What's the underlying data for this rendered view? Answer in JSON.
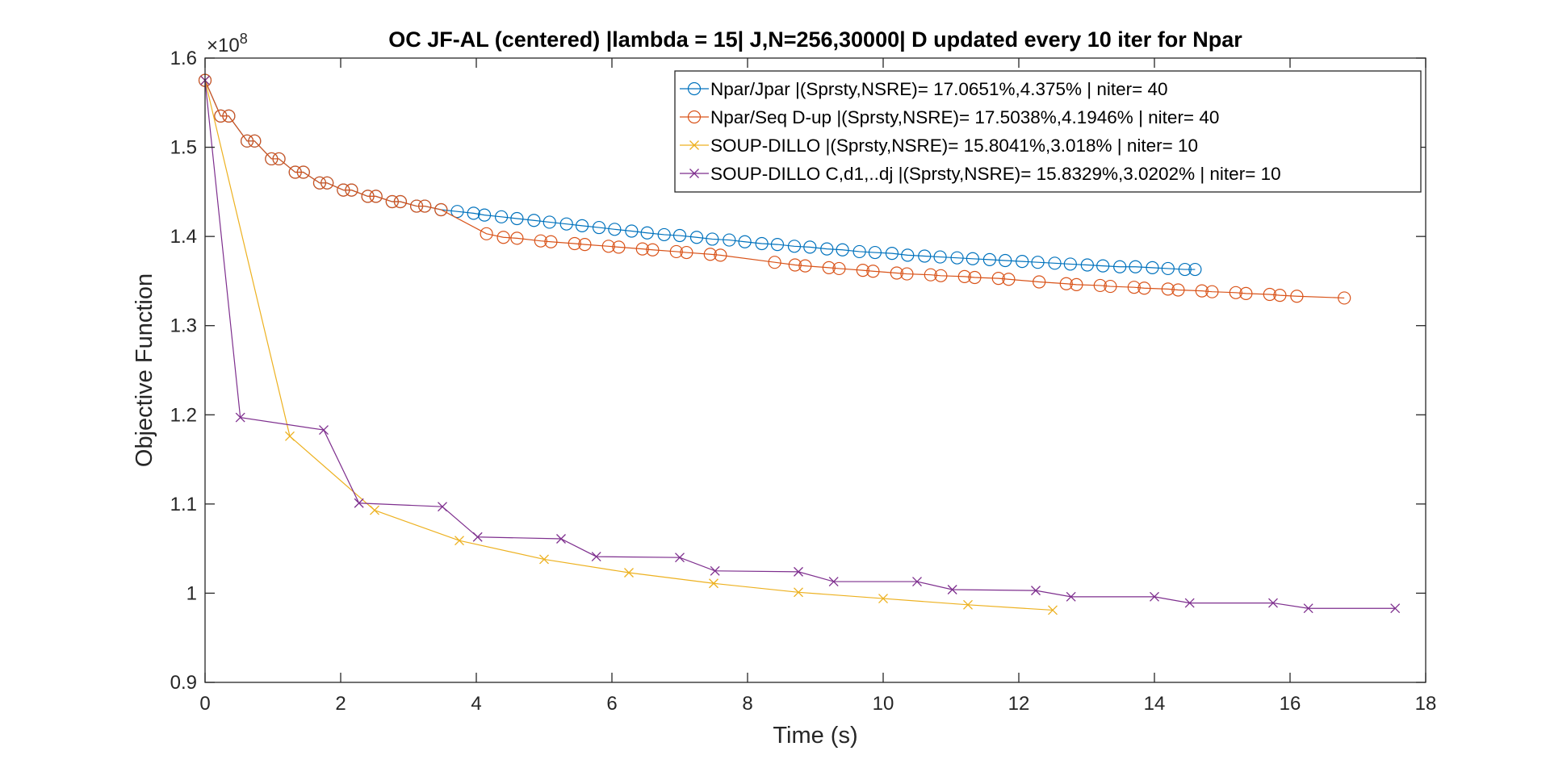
{
  "chart_data": {
    "type": "line",
    "title": "OC JF-AL (centered) |lambda = 15| J,N=256,30000| D updated every 10 iter for Npar",
    "xlabel": "Time (s)",
    "ylabel": "Objective Function",
    "y_exponent_label": "×10",
    "y_exponent_power": "8",
    "y_scale": 100000000,
    "xlim": [
      0,
      18
    ],
    "ylim": [
      0.9,
      1.6
    ],
    "x_ticks": [
      0,
      2,
      4,
      6,
      8,
      10,
      12,
      14,
      16,
      18
    ],
    "y_ticks": [
      0.9,
      1,
      1.1,
      1.2,
      1.3,
      1.4,
      1.5,
      1.6
    ],
    "x_tick_labels": [
      "0",
      "2",
      "4",
      "6",
      "8",
      "10",
      "12",
      "14",
      "16",
      "18"
    ],
    "y_tick_labels": [
      "0.9",
      "1",
      "1.1",
      "1.2",
      "1.3",
      "1.4",
      "1.5",
      "1.6"
    ],
    "grid": false,
    "legend_position": "top-right",
    "series": [
      {
        "name": "Npar/Jpar |(Sprsty,NSRE)= 17.0651%,4.375% | niter= 40",
        "color": "#0072BD",
        "marker": "circle",
        "x": [
          0,
          0.23,
          0.35,
          0.62,
          0.73,
          0.98,
          1.09,
          1.33,
          1.45,
          1.69,
          1.8,
          2.04,
          2.16,
          2.4,
          2.52,
          2.76,
          2.88,
          3.12,
          3.24,
          3.48,
          3.72,
          3.96,
          4.12,
          4.37,
          4.6,
          4.85,
          5.08,
          5.33,
          5.56,
          5.81,
          6.04,
          6.29,
          6.52,
          6.77,
          7.0,
          7.25,
          7.48,
          7.73,
          7.96,
          8.21,
          8.44,
          8.69,
          8.92,
          9.17,
          9.4,
          9.65,
          9.88,
          10.13,
          10.36,
          10.61,
          10.84,
          11.09,
          11.32,
          11.57,
          11.8,
          12.05,
          12.28,
          12.53,
          12.76,
          13.01,
          13.24,
          13.49,
          13.72,
          13.97,
          14.2,
          14.45,
          14.6
        ],
        "y": [
          1.575,
          1.535,
          1.535,
          1.507,
          1.507,
          1.487,
          1.487,
          1.472,
          1.472,
          1.46,
          1.46,
          1.452,
          1.452,
          1.445,
          1.445,
          1.439,
          1.439,
          1.434,
          1.434,
          1.43,
          1.428,
          1.426,
          1.424,
          1.422,
          1.42,
          1.418,
          1.416,
          1.414,
          1.412,
          1.41,
          1.408,
          1.406,
          1.404,
          1.402,
          1.401,
          1.399,
          1.397,
          1.396,
          1.394,
          1.392,
          1.391,
          1.389,
          1.388,
          1.386,
          1.385,
          1.383,
          1.382,
          1.381,
          1.379,
          1.378,
          1.377,
          1.376,
          1.375,
          1.374,
          1.373,
          1.372,
          1.371,
          1.37,
          1.369,
          1.368,
          1.367,
          1.366,
          1.366,
          1.365,
          1.364,
          1.363,
          1.363
        ]
      },
      {
        "name": "Npar/Seq D-up |(Sprsty,NSRE)= 17.5038%,4.1946% | niter= 40",
        "color": "#D95319",
        "marker": "circle",
        "x": [
          0,
          0.23,
          0.35,
          0.62,
          0.73,
          0.98,
          1.09,
          1.33,
          1.45,
          1.69,
          1.8,
          2.04,
          2.16,
          2.4,
          2.52,
          2.76,
          2.88,
          3.12,
          3.24,
          3.48,
          4.15,
          4.4,
          4.6,
          4.95,
          5.1,
          5.45,
          5.6,
          5.95,
          6.1,
          6.45,
          6.6,
          6.95,
          7.1,
          7.45,
          7.6,
          8.4,
          8.7,
          8.85,
          9.2,
          9.35,
          9.7,
          9.85,
          10.2,
          10.35,
          10.7,
          10.85,
          11.2,
          11.35,
          11.7,
          11.85,
          12.3,
          12.7,
          12.85,
          13.2,
          13.35,
          13.7,
          13.85,
          14.2,
          14.35,
          14.7,
          14.85,
          15.2,
          15.35,
          15.7,
          15.85,
          16.1,
          16.8
        ],
        "y": [
          1.575,
          1.535,
          1.535,
          1.507,
          1.507,
          1.487,
          1.487,
          1.472,
          1.472,
          1.46,
          1.46,
          1.452,
          1.452,
          1.445,
          1.445,
          1.439,
          1.439,
          1.434,
          1.434,
          1.43,
          1.403,
          1.399,
          1.398,
          1.395,
          1.394,
          1.392,
          1.391,
          1.389,
          1.388,
          1.386,
          1.385,
          1.383,
          1.382,
          1.38,
          1.379,
          1.371,
          1.368,
          1.367,
          1.365,
          1.364,
          1.362,
          1.361,
          1.359,
          1.358,
          1.357,
          1.356,
          1.355,
          1.354,
          1.353,
          1.352,
          1.349,
          1.347,
          1.346,
          1.345,
          1.344,
          1.343,
          1.342,
          1.341,
          1.34,
          1.339,
          1.338,
          1.337,
          1.336,
          1.335,
          1.334,
          1.333,
          1.331
        ]
      },
      {
        "name": "SOUP-DILLO |(Sprsty,NSRE)= 15.8041%,3.018% | niter= 10",
        "color": "#EDB120",
        "marker": "x",
        "x": [
          0,
          1.25,
          2.5,
          3.75,
          5.0,
          6.25,
          7.5,
          8.75,
          10.0,
          11.25,
          12.5
        ],
        "y": [
          1.575,
          1.176,
          1.093,
          1.059,
          1.038,
          1.023,
          1.011,
          1.001,
          0.994,
          0.987,
          0.981
        ]
      },
      {
        "name": "SOUP-DILLO C,d1,..dj |(Sprsty,NSRE)= 15.8329%,3.0202% | niter= 10",
        "color": "#7E2F8E",
        "marker": "x",
        "x": [
          0,
          0.52,
          1.75,
          2.27,
          3.5,
          4.02,
          5.25,
          5.77,
          7.0,
          7.52,
          8.75,
          9.27,
          10.5,
          11.02,
          12.25,
          12.77,
          14.0,
          14.52,
          15.75,
          16.27,
          17.55
        ],
        "y": [
          1.575,
          1.197,
          1.183,
          1.101,
          1.097,
          1.063,
          1.061,
          1.041,
          1.04,
          1.025,
          1.024,
          1.013,
          1.013,
          1.004,
          1.003,
          0.996,
          0.996,
          0.989,
          0.989,
          0.983,
          0.983
        ]
      }
    ]
  }
}
